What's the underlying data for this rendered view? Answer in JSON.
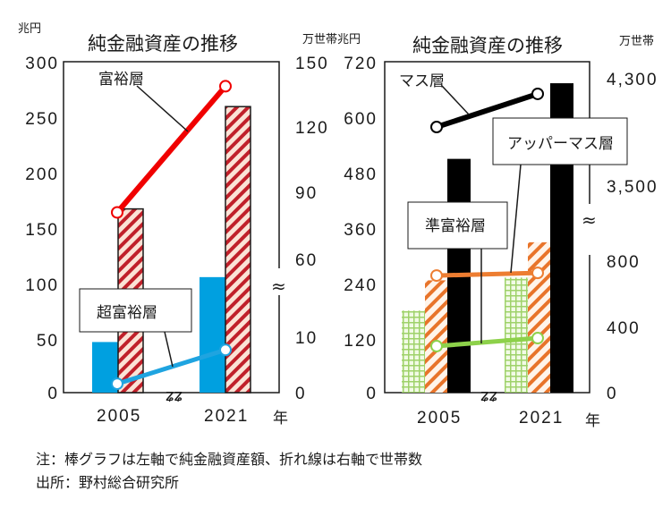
{
  "chart_data": [
    {
      "type": "bar",
      "title": "純金融資産の推移",
      "left_unit": "兆円",
      "right_unit": "万世帯",
      "xlabel": "年",
      "categories": [
        "2005",
        "2021"
      ],
      "left_ticks": [
        "300",
        "250",
        "200",
        "150",
        "100",
        "50",
        "0"
      ],
      "right_ticks": [
        "150",
        "120",
        "90",
        "60",
        "10",
        "0"
      ],
      "ylim": [
        0,
        300
      ],
      "series": [
        {
          "name": "超富裕層",
          "kind": "bar",
          "axis": "left",
          "values": [
            46,
            105
          ],
          "color": "#00a0e0"
        },
        {
          "name": "富裕層",
          "kind": "bar",
          "axis": "left",
          "values": [
            167,
            260
          ],
          "color": "#c0202a"
        },
        {
          "name": "富裕層",
          "kind": "line",
          "axis": "right",
          "values": [
            81,
            139
          ],
          "color": "#f00000"
        },
        {
          "name": "超富裕層",
          "kind": "line",
          "axis": "right",
          "values": [
            1.6,
            7.7
          ],
          "color": "#1fa4e0"
        }
      ],
      "labels": {
        "wealthy": "富裕層",
        "ultra": "超富裕層"
      }
    },
    {
      "type": "bar",
      "title": "純金融資産の推移",
      "left_unit": "兆円",
      "right_unit": "万世帯",
      "xlabel": "年",
      "categories": [
        "2005",
        "2021"
      ],
      "left_ticks": [
        "720",
        "600",
        "480",
        "360",
        "240",
        "120",
        "0"
      ],
      "right_ticks": [
        "4,300",
        "3,500",
        "800",
        "400",
        "0"
      ],
      "ylim": [
        0,
        720
      ],
      "series": [
        {
          "name": "準富裕層",
          "kind": "bar",
          "axis": "left",
          "values": [
            179,
            251
          ],
          "color": "#8cc63f"
        },
        {
          "name": "アッパーマス層",
          "kind": "bar",
          "axis": "left",
          "values": [
            245,
            328
          ],
          "color": "#e8742a"
        },
        {
          "name": "マス層",
          "kind": "bar",
          "axis": "left",
          "values": [
            510,
            675
          ],
          "color": "#000000"
        },
        {
          "name": "マス層",
          "kind": "line",
          "axis": "right",
          "values": [
            3940,
            4187
          ],
          "color": "#000000"
        },
        {
          "name": "アッパーマス層",
          "kind": "line",
          "axis": "right",
          "values": [
            713,
            729
          ],
          "color": "#ed7d31"
        },
        {
          "name": "準富裕層",
          "kind": "line",
          "axis": "right",
          "values": [
            285,
            334
          ],
          "color": "#8dd14a"
        }
      ],
      "labels": {
        "mass": "マス層",
        "upper": "アッパーマス層",
        "semi": "準富裕層"
      }
    }
  ],
  "notes": {
    "note": "注：棒グラフは左軸で純金融資産額、折れ線は右軸で世帯数",
    "source": "出所：野村総合研究所"
  }
}
